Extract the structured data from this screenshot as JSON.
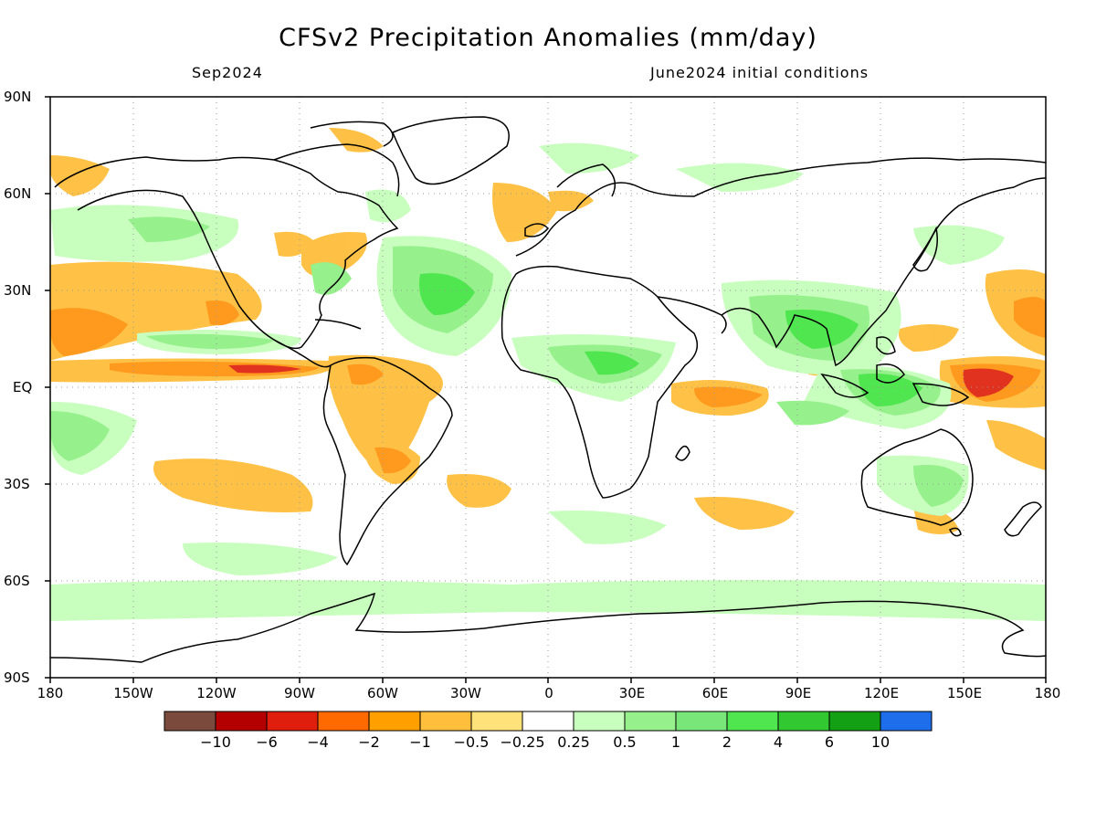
{
  "title": "CFSv2 Precipitation Anomalies (mm/day)",
  "subtitle_left": "Sep2024",
  "subtitle_right": "June2024 initial conditions",
  "lat_labels": [
    "90N",
    "60N",
    "30N",
    "EQ",
    "30S",
    "60S",
    "90S"
  ],
  "lon_labels": [
    "180",
    "150W",
    "120W",
    "90W",
    "60W",
    "30W",
    "0",
    "30E",
    "60E",
    "90E",
    "120E",
    "150E",
    "180"
  ],
  "colorbar": {
    "colors": [
      "#7a4a3c",
      "#b40000",
      "#e01e0e",
      "#ff6a00",
      "#ffa000",
      "#ffbe3c",
      "#ffe27a",
      "#ffffff",
      "#c8ffbe",
      "#96f08c",
      "#78e678",
      "#50e650",
      "#32c832",
      "#14a014",
      "#1e6eeb"
    ],
    "labels": [
      "−10",
      "−6",
      "−4",
      "−2",
      "−1",
      "−0.5",
      "−0.25",
      "0.25",
      "0.5",
      "1",
      "2",
      "4",
      "6",
      "10"
    ]
  }
}
